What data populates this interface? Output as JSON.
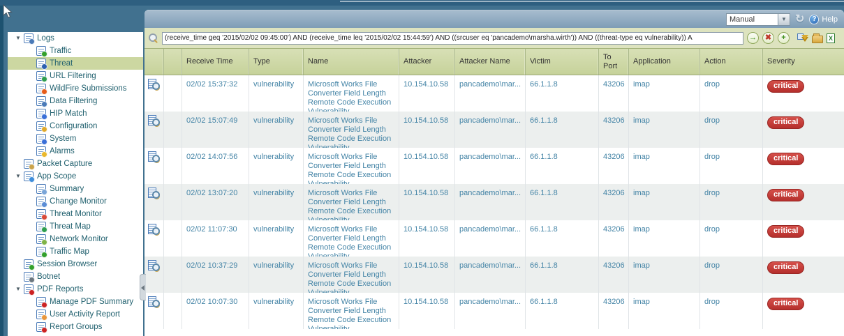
{
  "window": {
    "auto_refresh_value": "Manual",
    "help_label": "Help"
  },
  "filter": {
    "query": "(receive_time geq '2015/02/02 09:45:00') AND (receive_time leq '2015/02/02 15:44:59') AND ((srcuser eq 'pancademo\\marsha.wirth')) AND ((threat-type eq vulnerability)) A",
    "buttons": [
      {
        "name": "apply-filter",
        "icon": "green-arrow-icon",
        "glyph": "→",
        "color": "#3f8f1f"
      },
      {
        "name": "clear-filter",
        "icon": "red-x-icon",
        "glyph": "✖",
        "color": "#c0392b"
      },
      {
        "name": "add-filter",
        "icon": "green-plus-icon",
        "glyph": "+",
        "color": "#3f8f1f"
      },
      {
        "name": "save-filter",
        "icon": "funnel-icon",
        "shape": "funnel"
      },
      {
        "name": "load-filter",
        "icon": "folder-icon",
        "shape": "folder"
      },
      {
        "name": "export-csv",
        "icon": "spreadsheet-icon",
        "shape": "sheet"
      }
    ]
  },
  "sidebar": {
    "items": [
      {
        "label": "Logs",
        "level": 0,
        "expanded": true,
        "icon": "logs",
        "badge": "#4a7ab8"
      },
      {
        "label": "Traffic",
        "level": 1,
        "icon": "traffic-log",
        "badge": "#33a02c"
      },
      {
        "label": "Threat",
        "level": 1,
        "selected": true,
        "icon": "threat-log",
        "badge": "#2b5fb0"
      },
      {
        "label": "URL Filtering",
        "level": 1,
        "icon": "url-filtering-log",
        "badge": "#2e9e4f"
      },
      {
        "label": "WildFire Submissions",
        "level": 1,
        "icon": "wildfire-log",
        "badge": "#e65c1a"
      },
      {
        "label": "Data Filtering",
        "level": 1,
        "icon": "data-filtering-log",
        "badge": "#4a7ab8"
      },
      {
        "label": "HIP Match",
        "level": 1,
        "icon": "hip-match-log",
        "badge": "#3a6fd8"
      },
      {
        "label": "Configuration",
        "level": 1,
        "icon": "configuration-log",
        "badge": "#e0a92a"
      },
      {
        "label": "System",
        "level": 1,
        "icon": "system-log",
        "badge": "#3a6fd8"
      },
      {
        "label": "Alarms",
        "level": 1,
        "icon": "alarms-log",
        "badge": "#eab82c"
      },
      {
        "label": "Packet Capture",
        "level": 0,
        "icon": "packet-capture",
        "badge": "#c9a34c"
      },
      {
        "label": "App Scope",
        "level": 0,
        "expanded": true,
        "icon": "app-scope",
        "badge": "#3f8edb"
      },
      {
        "label": "Summary",
        "level": 1,
        "icon": "summary",
        "badge": "#7aa5d8"
      },
      {
        "label": "Change Monitor",
        "level": 1,
        "icon": "change-monitor",
        "badge": "#5b8dd6"
      },
      {
        "label": "Threat Monitor",
        "level": 1,
        "icon": "threat-monitor",
        "badge": "#d84a3a"
      },
      {
        "label": "Threat Map",
        "level": 1,
        "icon": "threat-map",
        "badge": "#2e9e4f"
      },
      {
        "label": "Network Monitor",
        "level": 1,
        "icon": "network-monitor",
        "badge": "#7fb347"
      },
      {
        "label": "Traffic Map",
        "level": 1,
        "icon": "traffic-map",
        "badge": "#33a02c"
      },
      {
        "label": "Session Browser",
        "level": 0,
        "icon": "session-browser",
        "badge": "#33a02c"
      },
      {
        "label": "Botnet",
        "level": 0,
        "icon": "botnet",
        "badge": "#6b7780"
      },
      {
        "label": "PDF Reports",
        "level": 0,
        "expanded": true,
        "icon": "pdf-reports",
        "badge": "#cc2222"
      },
      {
        "label": "Manage PDF Summary",
        "level": 1,
        "icon": "manage-pdf-summary",
        "badge": "#cc2222"
      },
      {
        "label": "User Activity Report",
        "level": 1,
        "icon": "user-activity-report",
        "badge": "#e8963c"
      },
      {
        "label": "Report Groups",
        "level": 1,
        "icon": "report-groups",
        "badge": "#cc2222"
      }
    ]
  },
  "table": {
    "columns": [
      {
        "label": ""
      },
      {
        "label": ""
      },
      {
        "label": "Receive Time"
      },
      {
        "label": "Type"
      },
      {
        "label": "Name"
      },
      {
        "label": "Attacker"
      },
      {
        "label": "Attacker Name"
      },
      {
        "label": "Victim"
      },
      {
        "label": "To Port"
      },
      {
        "label": "Application"
      },
      {
        "label": "Action"
      },
      {
        "label": "Severity"
      }
    ],
    "rows": [
      {
        "receive_time": "02/02 15:37:32",
        "type": "vulnerability",
        "name": "Microsoft Works File Converter Field Length Remote Code Execution Vulnerability",
        "attacker": "10.154.10.58",
        "attacker_name": "pancademo\\mar...",
        "victim": "66.1.1.8",
        "to_port": "43206",
        "application": "imap",
        "action": "drop",
        "severity": "critical"
      },
      {
        "receive_time": "02/02 15:07:49",
        "type": "vulnerability",
        "name": "Microsoft Works File Converter Field Length Remote Code Execution Vulnerability",
        "attacker": "10.154.10.58",
        "attacker_name": "pancademo\\mar...",
        "victim": "66.1.1.8",
        "to_port": "43206",
        "application": "imap",
        "action": "drop",
        "severity": "critical"
      },
      {
        "receive_time": "02/02 14:07:56",
        "type": "vulnerability",
        "name": "Microsoft Works File Converter Field Length Remote Code Execution Vulnerability",
        "attacker": "10.154.10.58",
        "attacker_name": "pancademo\\mar...",
        "victim": "66.1.1.8",
        "to_port": "43206",
        "application": "imap",
        "action": "drop",
        "severity": "critical"
      },
      {
        "receive_time": "02/02 13:07:20",
        "type": "vulnerability",
        "name": "Microsoft Works File Converter Field Length Remote Code Execution Vulnerability",
        "attacker": "10.154.10.58",
        "attacker_name": "pancademo\\mar...",
        "victim": "66.1.1.8",
        "to_port": "43206",
        "application": "imap",
        "action": "drop",
        "severity": "critical"
      },
      {
        "receive_time": "02/02 11:07:30",
        "type": "vulnerability",
        "name": "Microsoft Works File Converter Field Length Remote Code Execution Vulnerability",
        "attacker": "10.154.10.58",
        "attacker_name": "pancademo\\mar...",
        "victim": "66.1.1.8",
        "to_port": "43206",
        "application": "imap",
        "action": "drop",
        "severity": "critical"
      },
      {
        "receive_time": "02/02 10:37:29",
        "type": "vulnerability",
        "name": "Microsoft Works File Converter Field Length Remote Code Execution Vulnerability",
        "attacker": "10.154.10.58",
        "attacker_name": "pancademo\\mar...",
        "victim": "66.1.1.8",
        "to_port": "43206",
        "application": "imap",
        "action": "drop",
        "severity": "critical"
      },
      {
        "receive_time": "02/02 10:07:30",
        "type": "vulnerability",
        "name": "Microsoft Works File Converter Field Length Remote Code Execution Vulnerability",
        "attacker": "10.154.10.58",
        "attacker_name": "pancademo\\mar...",
        "victim": "66.1.1.8",
        "to_port": "43206",
        "application": "imap",
        "action": "drop",
        "severity": "critical"
      }
    ]
  }
}
